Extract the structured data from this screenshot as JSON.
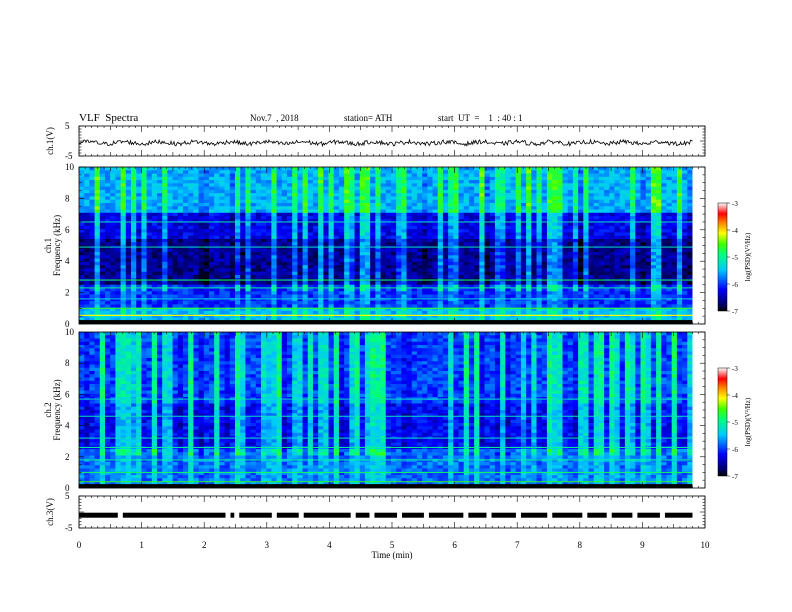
{
  "header": {
    "title": "VLF  Spectra",
    "date": "Nov.7  , 2018",
    "station": "station= ATH",
    "start": "start  UT  =    1  : 40 : 1"
  },
  "chart_data": [
    {
      "type": "line",
      "panel": "ch1-waveform",
      "ylabel": "ch.1(V)",
      "ylim": [
        -5,
        5
      ],
      "yticks": [
        "5",
        "-5"
      ],
      "xlim": [
        0,
        10
      ],
      "series": [
        {
          "values_description_level": -0.6,
          "values": []
        }
      ]
    },
    {
      "type": "heatmap",
      "panel": "ch1-spectrogram",
      "ylabel": [
        "ch.1",
        "Frequency  (kHz)"
      ],
      "ylim": [
        0,
        10
      ],
      "yticks": [
        "0",
        "2",
        "4",
        "6",
        "8",
        "10"
      ],
      "xlim": [
        0,
        10
      ],
      "data_end_min": 9.8,
      "colorbar": {
        "label": "log(PSD)(V²/Hz)",
        "range": [
          -7,
          -3
        ],
        "ticks": [
          "-3",
          "-4",
          "-5",
          "-6",
          "-7"
        ]
      }
    },
    {
      "type": "heatmap",
      "panel": "ch2-spectrogram",
      "ylabel": [
        "ch.2",
        "Frequency  (kHz)"
      ],
      "ylim": [
        0,
        10
      ],
      "yticks": [
        "0",
        "2",
        "4",
        "6",
        "8",
        "10"
      ],
      "xlim": [
        0,
        10
      ],
      "data_end_min": 9.8,
      "colorbar": {
        "label": "log(PSD)(V²/Hz)",
        "range": [
          -7,
          -3
        ],
        "ticks": [
          "-3",
          "-4",
          "-5",
          "-6",
          "-7"
        ]
      }
    },
    {
      "type": "line",
      "panel": "ch3-waveform",
      "ylabel": "ch.3(V)",
      "ylim": [
        -5,
        5
      ],
      "yticks": [
        "5",
        "-5"
      ],
      "xlim": [
        0,
        10
      ],
      "level": -1.0,
      "gaps_min": [
        0.66,
        2.38,
        2.52,
        3.12,
        3.55,
        4.38,
        4.68,
        5.12,
        5.55,
        6.18,
        6.55,
        7.02,
        7.52,
        8.08,
        8.47,
        8.88,
        9.32
      ]
    }
  ],
  "xaxis": {
    "label": "Time  (min)",
    "ticks": [
      "0",
      "1",
      "2",
      "3",
      "4",
      "5",
      "6",
      "7",
      "8",
      "9",
      "10"
    ]
  }
}
